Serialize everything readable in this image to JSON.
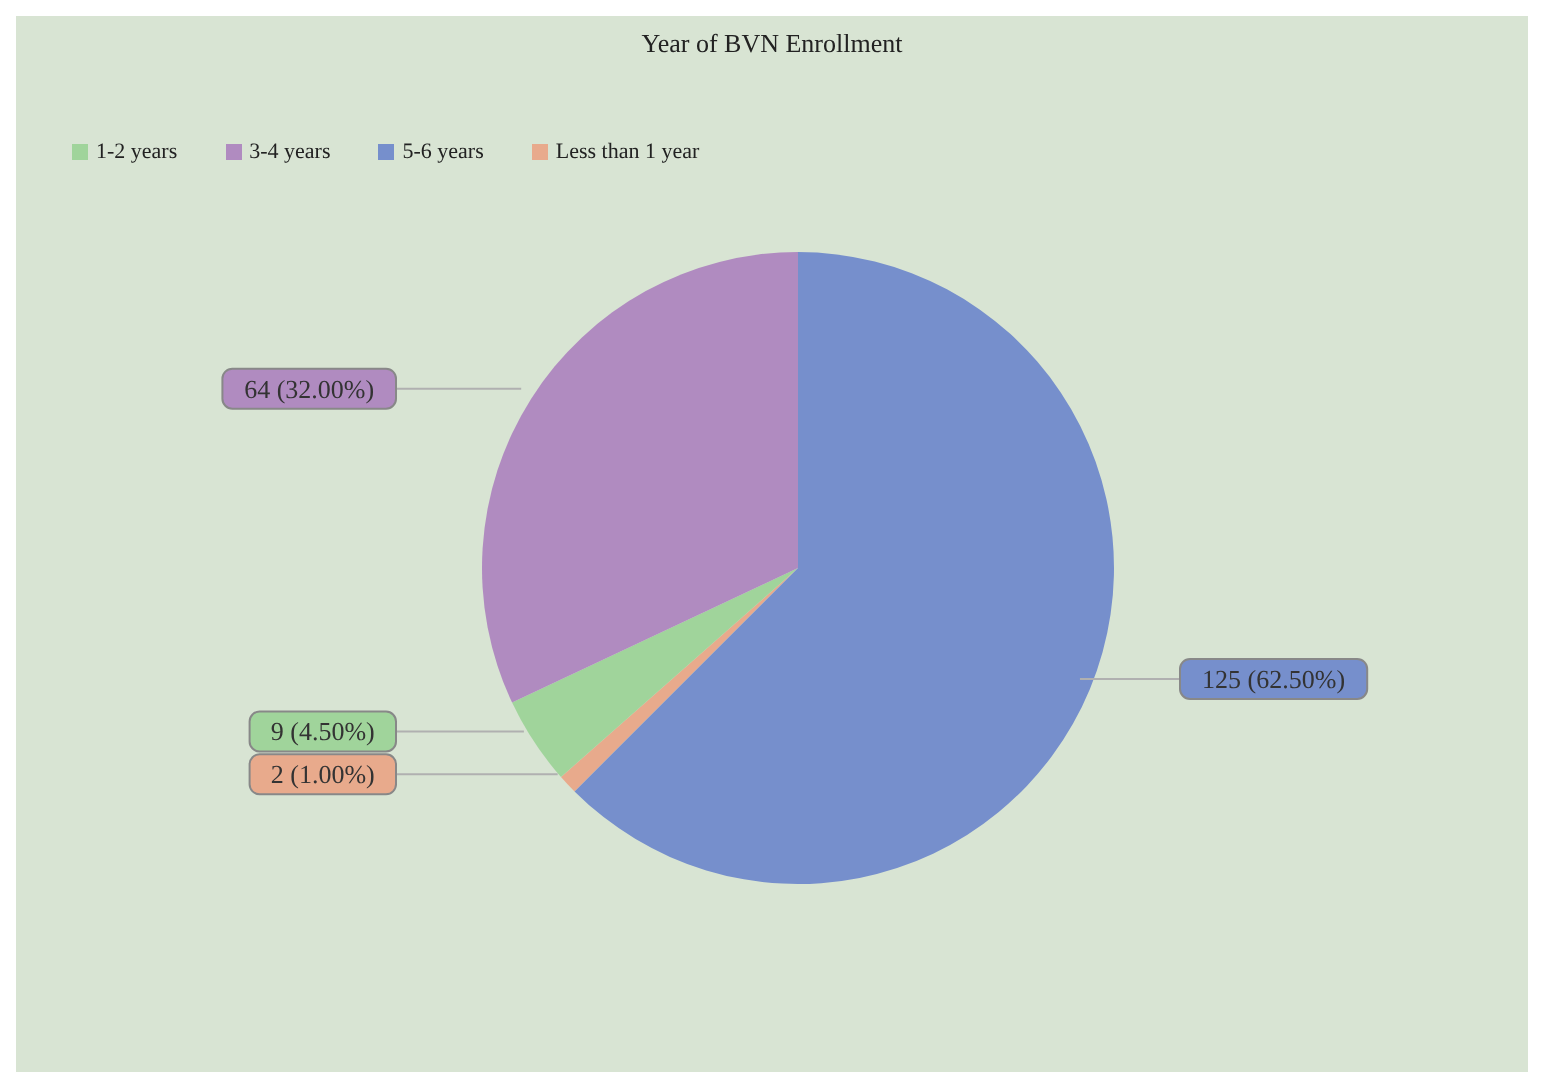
{
  "chart_data": {
    "type": "pie",
    "title": "Year of BVN Enrollment",
    "categories": [
      "Less than 1 year",
      "1-2 years",
      "3-4 years",
      "5-6 years"
    ],
    "values": [
      2,
      9,
      64,
      125
    ],
    "colors": [
      "#e8aa8c",
      "#a0d49b",
      "#b08bc0",
      "#768fcc"
    ],
    "value_labels": [
      "2 (1.00%)",
      "9 (4.50%)",
      "64 (32.00%)",
      "125 (62.50%)"
    ],
    "legend": "top left"
  }
}
